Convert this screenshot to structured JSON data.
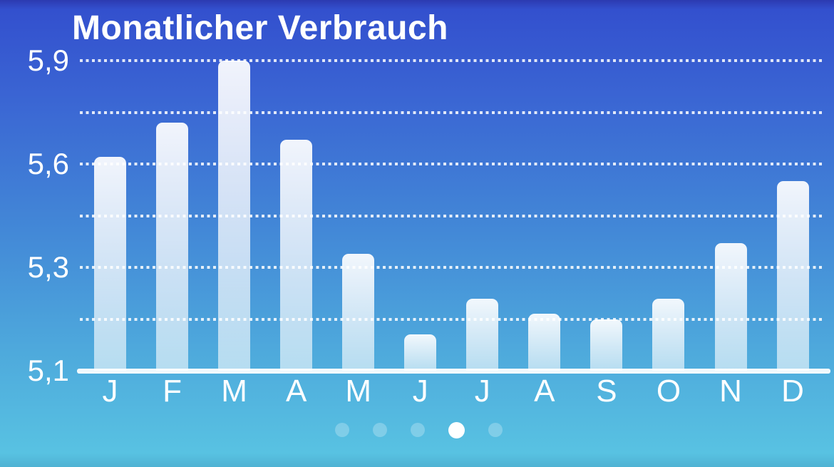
{
  "chart": {
    "title": "Monatlicher Verbrauch"
  },
  "chart_data": {
    "type": "bar",
    "title": "Monatlicher Verbrauch",
    "categories": [
      "J",
      "F",
      "M",
      "A",
      "M",
      "J",
      "J",
      "A",
      "S",
      "O",
      "N",
      "D"
    ],
    "values": [
      5.62,
      5.72,
      5.9,
      5.67,
      5.34,
      5.17,
      5.24,
      5.21,
      5.2,
      5.24,
      5.37,
      5.55
    ],
    "y_ticks": [
      {
        "value": 5.9,
        "label": "5,9"
      },
      {
        "value": 5.75,
        "label": ""
      },
      {
        "value": 5.6,
        "label": "5,6"
      },
      {
        "value": 5.45,
        "label": ""
      },
      {
        "value": 5.3,
        "label": "5,3"
      },
      {
        "value": 5.2,
        "label": ""
      },
      {
        "value": 5.1,
        "label": "5,1"
      }
    ],
    "ylim": [
      5.1,
      5.9
    ],
    "xlabel": "",
    "ylabel": "",
    "grid": "horizontal-dotted",
    "legend": "none"
  },
  "page_indicator": {
    "count": 5,
    "active_index": 3
  },
  "colors": {
    "background_top": "#3350ce",
    "background_bottom": "#58c2e2",
    "bar_fill_top": "rgba(255,255,255,0.93)",
    "bar_fill_bottom": "rgba(255,255,255,0.58)",
    "grid_line": "rgba(255,255,255,0.85)",
    "text": "#ffffff",
    "active_dot": "#ffffff",
    "inactive_dot": "rgba(255,255,255,0.25)"
  }
}
